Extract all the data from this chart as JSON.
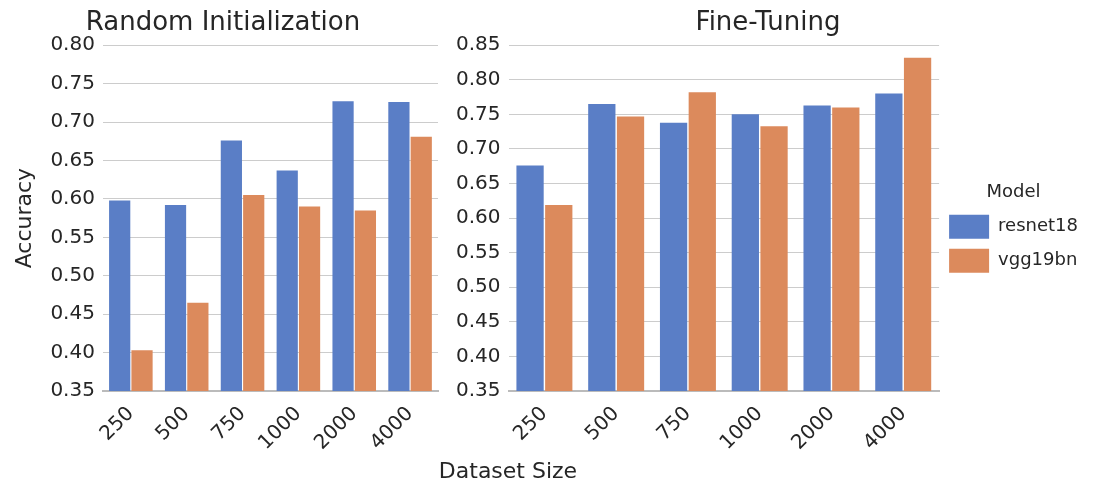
{
  "chart_data": [
    {
      "type": "bar",
      "title": "Random Initialization",
      "xlabel": "Dataset Size",
      "ylabel": "Accuracy",
      "categories": [
        "250",
        "500",
        "750",
        "1000",
        "2000",
        "4000"
      ],
      "series": [
        {
          "color": "#5a7ec6",
          "values": [
            0.598,
            0.592,
            0.676,
            0.637,
            0.727,
            0.726
          ]
        },
        {
          "color": "#dc8a5c",
          "values": [
            0.403,
            0.465,
            0.605,
            0.59,
            0.585,
            0.681
          ]
        }
      ],
      "ylim": [
        0.35,
        0.8
      ],
      "yticks": [
        0.35,
        {
          "value": 0.4,
          "label": "0.40"
        },
        0.45,
        {
          "value": 0.5,
          "label": "0.50"
        },
        0.55,
        {
          "value": 0.6,
          "label": "0.60"
        },
        0.65,
        {
          "value": 0.7,
          "label": "0.70"
        },
        0.75,
        {
          "value": 0.8,
          "label": "0.80"
        }
      ],
      "grid": "y",
      "legend": false
    },
    {
      "type": "bar",
      "title": "Fine-Tuning",
      "categories": [
        "250",
        "500",
        "750",
        "1000",
        "2000",
        "4000"
      ],
      "series": [
        {
          "name": "resnet18",
          "color": "#5a7ec6",
          "values": [
            0.676,
            0.765,
            0.738,
            0.75,
            0.763,
            0.78
          ]
        },
        {
          "name": "vgg19bn",
          "color": "#dc8a5c",
          "values": [
            0.619,
            0.747,
            0.782,
            0.733,
            0.76,
            0.832
          ]
        }
      ],
      "ylim": [
        0.35,
        0.85
      ],
      "yticks": [
        0.35,
        {
          "value": 0.4,
          "label": "0.40"
        },
        0.45,
        {
          "value": 0.5,
          "label": "0.50"
        },
        0.55,
        {
          "value": 0.6,
          "label": "0.60"
        },
        0.65,
        {
          "value": 0.7,
          "label": "0.70"
        },
        0.75,
        {
          "value": 0.8,
          "label": "0.80"
        },
        0.85
      ],
      "grid": "y",
      "legend": "right",
      "legend_title": "Model"
    }
  ]
}
